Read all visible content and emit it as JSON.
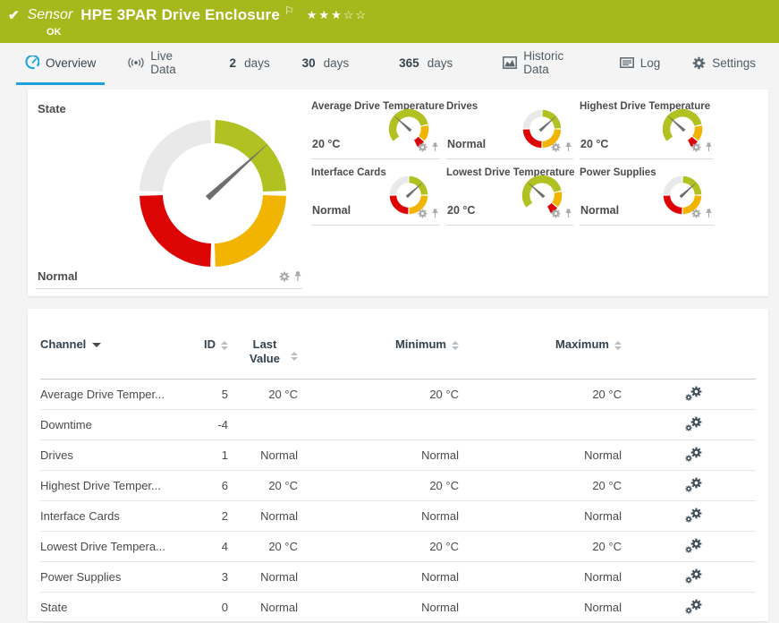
{
  "header": {
    "kind": "Sensor",
    "title": "HPE 3PAR Drive Enclosure",
    "status": "OK",
    "stars_filled": 3,
    "stars_total": 5
  },
  "tabs": [
    {
      "icon": "gauge-icon",
      "label": "Overview",
      "active": true
    },
    {
      "icon": "live-data-icon",
      "label": "Live Data",
      "active": false
    },
    {
      "prefix": "2",
      "label": "days",
      "active": false
    },
    {
      "prefix": "30",
      "label": "days",
      "active": false
    },
    {
      "prefix": "365",
      "label": "days",
      "active": false
    },
    {
      "icon": "historic-chart-icon",
      "label": "Historic Data",
      "active": false
    },
    {
      "icon": "log-icon",
      "label": "Log",
      "active": false
    },
    {
      "icon": "gear-icon",
      "label": "Settings",
      "active": false
    }
  ],
  "colors": {
    "header_green": "#a6b81b",
    "tab_active_blue": "#1ca1dc",
    "gauge": {
      "green": "#b0c121",
      "yellow": "#f1b400",
      "red": "#dd0404",
      "gray": "#e9e9e9",
      "needle": "#6e6e6e"
    }
  },
  "overview": {
    "state_gauge": {
      "label": "State",
      "value": "Normal",
      "type": "quadrant",
      "size": "large",
      "needle_deg": 42
    },
    "mini_gauges": [
      {
        "label": "Average Drive Temperature",
        "value": "20 °C",
        "type": "temp",
        "needle_deg": 138
      },
      {
        "label": "Drives",
        "value": "Normal",
        "type": "quadrant",
        "needle_deg": 42
      },
      {
        "label": "Highest Drive Temperature",
        "value": "20 °C",
        "type": "temp",
        "needle_deg": 138
      },
      {
        "label": "Interface Cards",
        "value": "Normal",
        "type": "quadrant",
        "needle_deg": 42
      },
      {
        "label": "Lowest Drive Temperature",
        "value": "20 °C",
        "type": "temp",
        "needle_deg": 138
      },
      {
        "label": "Power Supplies",
        "value": "Normal",
        "type": "quadrant",
        "needle_deg": 42
      }
    ]
  },
  "table": {
    "columns": {
      "channel": "Channel",
      "id": "ID",
      "last": "Last Value",
      "min": "Minimum",
      "max": "Maximum"
    },
    "rows": [
      {
        "channel": "Average Drive Temper...",
        "id": "5",
        "last": "20 °C",
        "min": "20 °C",
        "max": "20 °C"
      },
      {
        "channel": "Downtime",
        "id": "-4",
        "last": "",
        "min": "",
        "max": ""
      },
      {
        "channel": "Drives",
        "id": "1",
        "last": "Normal",
        "min": "Normal",
        "max": "Normal"
      },
      {
        "channel": "Highest Drive Temper...",
        "id": "6",
        "last": "20 °C",
        "min": "20 °C",
        "max": "20 °C"
      },
      {
        "channel": "Interface Cards",
        "id": "2",
        "last": "Normal",
        "min": "Normal",
        "max": "Normal"
      },
      {
        "channel": "Lowest Drive Tempera...",
        "id": "4",
        "last": "20 °C",
        "min": "20 °C",
        "max": "20 °C"
      },
      {
        "channel": "Power Supplies",
        "id": "3",
        "last": "Normal",
        "min": "Normal",
        "max": "Normal"
      },
      {
        "channel": "State",
        "id": "0",
        "last": "Normal",
        "min": "Normal",
        "max": "Normal"
      }
    ]
  },
  "icons": [
    "check-icon",
    "flag-icon",
    "star-rating",
    "gauge-icon",
    "live-data-icon",
    "historic-chart-icon",
    "log-icon",
    "gear-icon",
    "pin-icon",
    "edit-channel-icon",
    "sort-icon"
  ]
}
